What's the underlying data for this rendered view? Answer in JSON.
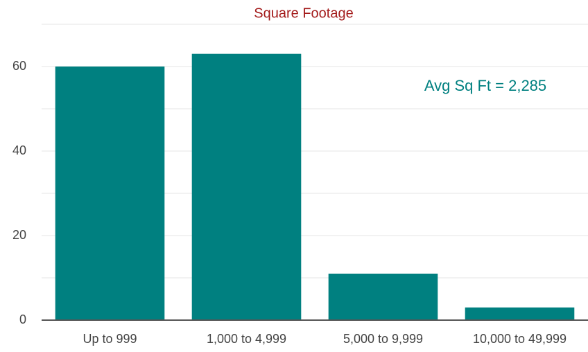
{
  "chart_data": {
    "type": "bar",
    "title": "Square Footage",
    "annotation": "Avg Sq Ft = 2,285",
    "categories": [
      "Up to 999",
      "1,000 to 4,999",
      "5,000 to 9,999",
      "10,000 to 49,999"
    ],
    "values": [
      60,
      63,
      11,
      3
    ],
    "color": "#008080",
    "title_color": "#a31a1a",
    "annotation_color": "#008080",
    "ylim": [
      0,
      70
    ],
    "yticks": [
      0,
      20,
      40,
      60
    ],
    "minor_yticks": [
      10,
      30,
      50,
      70
    ],
    "grid": true
  }
}
